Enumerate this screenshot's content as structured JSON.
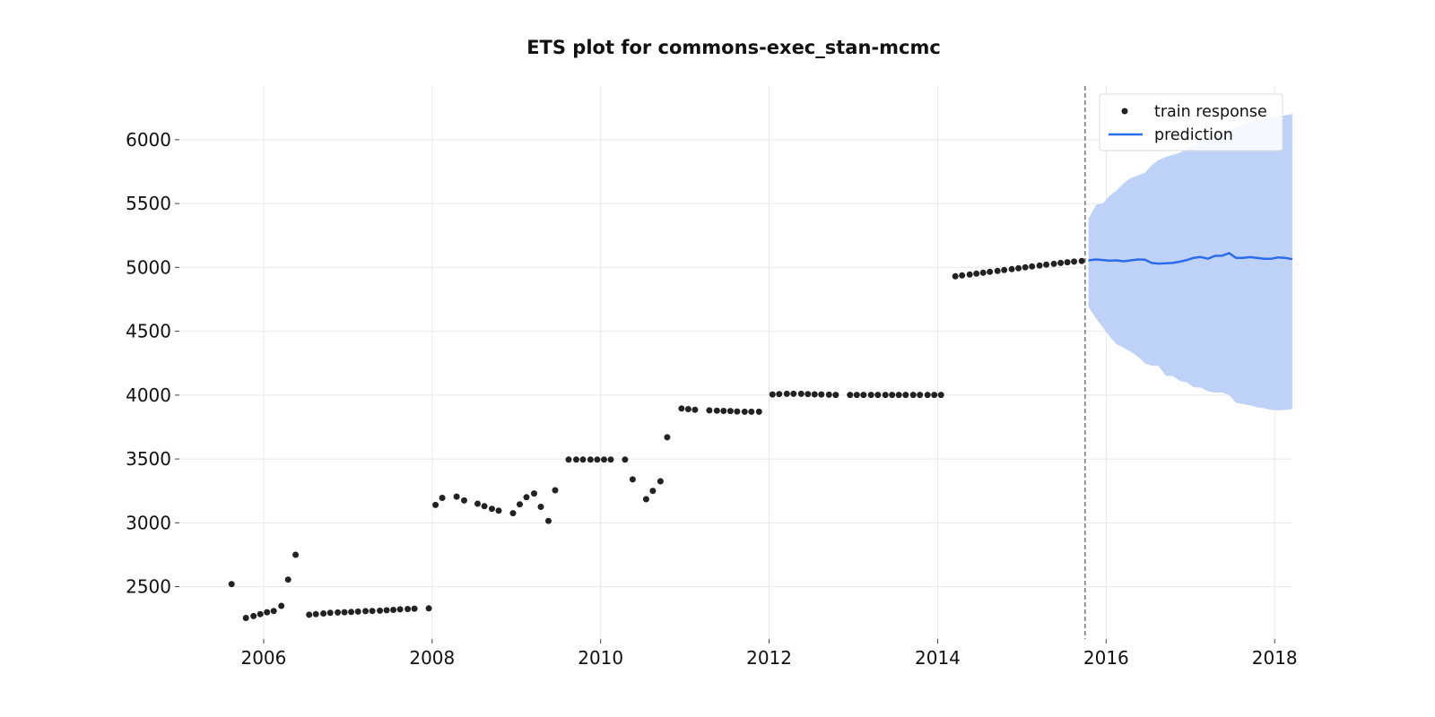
{
  "chart_data": {
    "type": "line",
    "title": "ETS plot for commons-exec_stan-mcmc",
    "xlabel": "",
    "ylabel": "",
    "x_ticks": [
      "2006",
      "2008",
      "2010",
      "2012",
      "2014",
      "2016",
      "2018"
    ],
    "y_ticks": [
      "2500",
      "3000",
      "3500",
      "4000",
      "4500",
      "5000",
      "5500",
      "6000"
    ],
    "xlim": [
      2005.0,
      2018.2
    ],
    "ylim": [
      2090,
      6420
    ],
    "grid": true,
    "legend_position": "top-right",
    "cutoff_x": 2015.75,
    "colors": {
      "train": "#222222",
      "prediction": "#2b6cea",
      "band": "#bed2f7",
      "cutoff": "#777777"
    },
    "series": [
      {
        "name": "train response",
        "kind": "scatter",
        "points": [
          [
            2005.62,
            2520
          ],
          [
            2005.79,
            2255
          ],
          [
            2005.88,
            2270
          ],
          [
            2005.96,
            2285
          ],
          [
            2006.04,
            2300
          ],
          [
            2006.12,
            2310
          ],
          [
            2006.21,
            2350
          ],
          [
            2006.29,
            2555
          ],
          [
            2006.38,
            2750
          ],
          [
            2006.54,
            2280
          ],
          [
            2006.62,
            2285
          ],
          [
            2006.71,
            2290
          ],
          [
            2006.79,
            2295
          ],
          [
            2006.88,
            2298
          ],
          [
            2006.96,
            2300
          ],
          [
            2007.04,
            2302
          ],
          [
            2007.12,
            2305
          ],
          [
            2007.21,
            2308
          ],
          [
            2007.29,
            2310
          ],
          [
            2007.38,
            2312
          ],
          [
            2007.46,
            2315
          ],
          [
            2007.54,
            2318
          ],
          [
            2007.62,
            2322
          ],
          [
            2007.71,
            2325
          ],
          [
            2007.79,
            2328
          ],
          [
            2007.96,
            2330
          ],
          [
            2008.04,
            3140
          ],
          [
            2008.12,
            3195
          ],
          [
            2008.29,
            3205
          ],
          [
            2008.38,
            3175
          ],
          [
            2008.54,
            3150
          ],
          [
            2008.62,
            3130
          ],
          [
            2008.71,
            3110
          ],
          [
            2008.79,
            3095
          ],
          [
            2008.96,
            3075
          ],
          [
            2009.04,
            3145
          ],
          [
            2009.12,
            3200
          ],
          [
            2009.21,
            3230
          ],
          [
            2009.29,
            3125
          ],
          [
            2009.38,
            3015
          ],
          [
            2009.46,
            3255
          ],
          [
            2009.62,
            3495
          ],
          [
            2009.71,
            3495
          ],
          [
            2009.79,
            3495
          ],
          [
            2009.88,
            3495
          ],
          [
            2009.96,
            3495
          ],
          [
            2010.04,
            3495
          ],
          [
            2010.12,
            3495
          ],
          [
            2010.29,
            3495
          ],
          [
            2010.38,
            3340
          ],
          [
            2010.54,
            3185
          ],
          [
            2010.62,
            3250
          ],
          [
            2010.71,
            3325
          ],
          [
            2010.79,
            3670
          ],
          [
            2010.96,
            3895
          ],
          [
            2011.04,
            3890
          ],
          [
            2011.12,
            3885
          ],
          [
            2011.29,
            3880
          ],
          [
            2011.38,
            3878
          ],
          [
            2011.46,
            3876
          ],
          [
            2011.54,
            3875
          ],
          [
            2011.62,
            3872
          ],
          [
            2011.71,
            3870
          ],
          [
            2011.79,
            3870
          ],
          [
            2011.88,
            3870
          ],
          [
            2012.04,
            4005
          ],
          [
            2012.12,
            4008
          ],
          [
            2012.21,
            4010
          ],
          [
            2012.29,
            4010
          ],
          [
            2012.38,
            4010
          ],
          [
            2012.46,
            4008
          ],
          [
            2012.54,
            4006
          ],
          [
            2012.62,
            4005
          ],
          [
            2012.71,
            4003
          ],
          [
            2012.79,
            4002
          ],
          [
            2012.96,
            4002
          ],
          [
            2013.04,
            4002
          ],
          [
            2013.12,
            4002
          ],
          [
            2013.21,
            4002
          ],
          [
            2013.29,
            4002
          ],
          [
            2013.38,
            4002
          ],
          [
            2013.46,
            4002
          ],
          [
            2013.54,
            4002
          ],
          [
            2013.62,
            4002
          ],
          [
            2013.71,
            4002
          ],
          [
            2013.79,
            4002
          ],
          [
            2013.88,
            4002
          ],
          [
            2013.96,
            4002
          ],
          [
            2014.04,
            4002
          ],
          [
            2014.21,
            4930
          ],
          [
            2014.29,
            4937
          ],
          [
            2014.38,
            4944
          ],
          [
            2014.46,
            4951
          ],
          [
            2014.54,
            4958
          ],
          [
            2014.62,
            4965
          ],
          [
            2014.71,
            4972
          ],
          [
            2014.79,
            4979
          ],
          [
            2014.88,
            4986
          ],
          [
            2014.96,
            4993
          ],
          [
            2015.04,
            5000
          ],
          [
            2015.12,
            5007
          ],
          [
            2015.21,
            5014
          ],
          [
            2015.29,
            5021
          ],
          [
            2015.38,
            5028
          ],
          [
            2015.46,
            5035
          ],
          [
            2015.54,
            5040
          ],
          [
            2015.62,
            5045
          ],
          [
            2015.71,
            5050
          ]
        ]
      },
      {
        "name": "prediction",
        "kind": "line",
        "points": [
          [
            2015.79,
            5055
          ],
          [
            2015.88,
            5062
          ],
          [
            2015.96,
            5058
          ],
          [
            2016.04,
            5052
          ],
          [
            2016.12,
            5055
          ],
          [
            2016.21,
            5048
          ],
          [
            2016.29,
            5055
          ],
          [
            2016.38,
            5062
          ],
          [
            2016.46,
            5060
          ],
          [
            2016.54,
            5035
          ],
          [
            2016.62,
            5030
          ],
          [
            2016.71,
            5032
          ],
          [
            2016.79,
            5035
          ],
          [
            2016.88,
            5045
          ],
          [
            2016.96,
            5058
          ],
          [
            2017.04,
            5075
          ],
          [
            2017.12,
            5082
          ],
          [
            2017.21,
            5068
          ],
          [
            2017.29,
            5090
          ],
          [
            2017.38,
            5092
          ],
          [
            2017.46,
            5112
          ],
          [
            2017.54,
            5075
          ],
          [
            2017.62,
            5075
          ],
          [
            2017.71,
            5080
          ],
          [
            2017.79,
            5075
          ],
          [
            2017.88,
            5068
          ],
          [
            2017.96,
            5068
          ],
          [
            2018.04,
            5078
          ],
          [
            2018.12,
            5075
          ],
          [
            2018.21,
            5065
          ]
        ],
        "upper": [
          5380,
          5490,
          5500,
          5560,
          5600,
          5660,
          5700,
          5720,
          5740,
          5800,
          5840,
          5865,
          5880,
          5900,
          5930,
          5960,
          5990,
          6010,
          6040,
          6060,
          6080,
          6100,
          6120,
          6140,
          6150,
          6160,
          6170,
          6180,
          6190,
          6200
        ],
        "lower": [
          4690,
          4600,
          4530,
          4460,
          4400,
          4370,
          4340,
          4300,
          4250,
          4230,
          4230,
          4150,
          4150,
          4110,
          4100,
          4060,
          4060,
          4030,
          4020,
          4020,
          4000,
          3940,
          3930,
          3920,
          3905,
          3895,
          3885,
          3880,
          3885,
          3890
        ]
      }
    ]
  }
}
